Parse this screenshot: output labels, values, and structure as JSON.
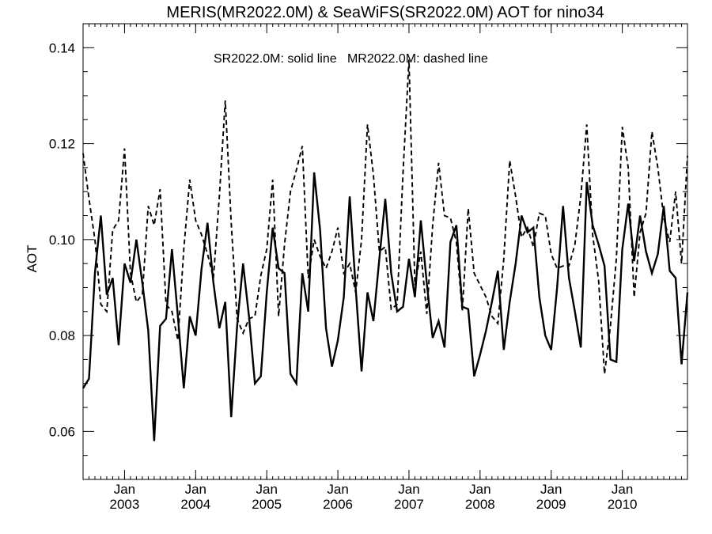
{
  "chart_data": {
    "type": "line",
    "title": "MERIS(MR2022.0M) & SeaWiFS(SR2022.0M)  AOT for nino34",
    "ylabel": "AOT",
    "xlabel": "",
    "annotation": "SR2022.0M: solid line   MR2022.0M: dashed line",
    "xlim": [
      "2002-06",
      "2010-12"
    ],
    "ylim": [
      0.05,
      0.145
    ],
    "y_ticks": [
      {
        "value": 0.06,
        "label": "0.06"
      },
      {
        "value": 0.08,
        "label": "0.08"
      },
      {
        "value": 0.1,
        "label": "0.10"
      },
      {
        "value": 0.12,
        "label": "0.12"
      },
      {
        "value": 0.14,
        "label": "0.14"
      }
    ],
    "x_ticks": [
      {
        "value": "2003-01",
        "month": "Jan",
        "year": "2003"
      },
      {
        "value": "2004-01",
        "month": "Jan",
        "year": "2004"
      },
      {
        "value": "2005-01",
        "month": "Jan",
        "year": "2005"
      },
      {
        "value": "2006-01",
        "month": "Jan",
        "year": "2006"
      },
      {
        "value": "2007-01",
        "month": "Jan",
        "year": "2007"
      },
      {
        "value": "2008-01",
        "month": "Jan",
        "year": "2008"
      },
      {
        "value": "2009-01",
        "month": "Jan",
        "year": "2009"
      },
      {
        "value": "2010-01",
        "month": "Jan",
        "year": "2010"
      }
    ],
    "grid": false,
    "series": [
      {
        "name": "SR2022.0M",
        "style": "solid",
        "color": "#000000",
        "points": [
          [
            "2002-06",
            0.069
          ],
          [
            "2002-07",
            0.071
          ],
          [
            "2002-08",
            0.093
          ],
          [
            "2002-09",
            0.105
          ],
          [
            "2002-10",
            0.0885
          ],
          [
            "2002-11",
            0.092
          ],
          [
            "2002-12",
            0.078
          ],
          [
            "2003-01",
            0.095
          ],
          [
            "2003-02",
            0.091
          ],
          [
            "2003-03",
            0.1
          ],
          [
            "2003-04",
            0.091
          ],
          [
            "2003-05",
            0.081
          ],
          [
            "2003-06",
            0.058
          ],
          [
            "2003-07",
            0.082
          ],
          [
            "2003-08",
            0.0835
          ],
          [
            "2003-09",
            0.098
          ],
          [
            "2003-10",
            0.084
          ],
          [
            "2003-11",
            0.069
          ],
          [
            "2003-12",
            0.084
          ],
          [
            "2004-01",
            0.08
          ],
          [
            "2004-02",
            0.094
          ],
          [
            "2004-03",
            0.1035
          ],
          [
            "2004-04",
            0.091
          ],
          [
            "2004-05",
            0.0815
          ],
          [
            "2004-06",
            0.087
          ],
          [
            "2004-07",
            0.063
          ],
          [
            "2004-08",
            0.082
          ],
          [
            "2004-09",
            0.095
          ],
          [
            "2004-10",
            0.084
          ],
          [
            "2004-11",
            0.07
          ],
          [
            "2004-12",
            0.0715
          ],
          [
            "2005-01",
            0.089
          ],
          [
            "2005-02",
            0.1025
          ],
          [
            "2005-03",
            0.094
          ],
          [
            "2005-04",
            0.093
          ],
          [
            "2005-05",
            0.072
          ],
          [
            "2005-06",
            0.07
          ],
          [
            "2005-07",
            0.093
          ],
          [
            "2005-08",
            0.085
          ],
          [
            "2005-09",
            0.114
          ],
          [
            "2005-10",
            0.102
          ],
          [
            "2005-11",
            0.0815
          ],
          [
            "2005-12",
            0.0735
          ],
          [
            "2006-01",
            0.079
          ],
          [
            "2006-02",
            0.088
          ],
          [
            "2006-03",
            0.109
          ],
          [
            "2006-04",
            0.09
          ],
          [
            "2006-05",
            0.0725
          ],
          [
            "2006-06",
            0.089
          ],
          [
            "2006-07",
            0.083
          ],
          [
            "2006-08",
            0.096
          ],
          [
            "2006-09",
            0.1085
          ],
          [
            "2006-10",
            0.093
          ],
          [
            "2006-11",
            0.085
          ],
          [
            "2006-12",
            0.086
          ],
          [
            "2007-01",
            0.096
          ],
          [
            "2007-02",
            0.088
          ],
          [
            "2007-03",
            0.104
          ],
          [
            "2007-04",
            0.091
          ],
          [
            "2007-05",
            0.0795
          ],
          [
            "2007-06",
            0.083
          ],
          [
            "2007-07",
            0.0775
          ],
          [
            "2007-08",
            0.0995
          ],
          [
            "2007-09",
            0.103
          ],
          [
            "2007-10",
            0.086
          ],
          [
            "2007-11",
            0.0855
          ],
          [
            "2007-12",
            0.0715
          ],
          [
            "2008-01",
            0.076
          ],
          [
            "2008-02",
            0.081
          ],
          [
            "2008-03",
            0.087
          ],
          [
            "2008-04",
            0.0935
          ],
          [
            "2008-05",
            0.077
          ],
          [
            "2008-06",
            0.087
          ],
          [
            "2008-07",
            0.095
          ],
          [
            "2008-08",
            0.105
          ],
          [
            "2008-09",
            0.1015
          ],
          [
            "2008-10",
            0.1025
          ],
          [
            "2008-11",
            0.088
          ],
          [
            "2008-12",
            0.08
          ],
          [
            "2009-01",
            0.077
          ],
          [
            "2009-02",
            0.09
          ],
          [
            "2009-03",
            0.107
          ],
          [
            "2009-04",
            0.092
          ],
          [
            "2009-05",
            0.085
          ],
          [
            "2009-06",
            0.0775
          ],
          [
            "2009-07",
            0.112
          ],
          [
            "2009-08",
            0.103
          ],
          [
            "2009-09",
            0.099
          ],
          [
            "2009-10",
            0.0945
          ],
          [
            "2009-11",
            0.075
          ],
          [
            "2009-12",
            0.0745
          ],
          [
            "2010-01",
            0.098
          ],
          [
            "2010-02",
            0.1075
          ],
          [
            "2010-03",
            0.0955
          ],
          [
            "2010-04",
            0.105
          ],
          [
            "2010-05",
            0.0975
          ],
          [
            "2010-06",
            0.093
          ],
          [
            "2010-07",
            0.097
          ],
          [
            "2010-08",
            0.107
          ],
          [
            "2010-09",
            0.0935
          ],
          [
            "2010-10",
            0.092
          ],
          [
            "2010-11",
            0.074
          ],
          [
            "2010-12",
            0.089
          ]
        ]
      },
      {
        "name": "MR2022.0M",
        "style": "dashed",
        "color": "#000000",
        "points": [
          [
            "2002-06",
            0.118
          ],
          [
            "2002-07",
            0.1085
          ],
          [
            "2002-08",
            0.1
          ],
          [
            "2002-09",
            0.0865
          ],
          [
            "2002-10",
            0.085
          ],
          [
            "2002-11",
            0.102
          ],
          [
            "2002-12",
            0.104
          ],
          [
            "2003-01",
            0.119
          ],
          [
            "2003-02",
            0.093
          ],
          [
            "2003-03",
            0.087
          ],
          [
            "2003-04",
            0.0885
          ],
          [
            "2003-05",
            0.107
          ],
          [
            "2003-06",
            0.103
          ],
          [
            "2003-07",
            0.1105
          ],
          [
            "2003-08",
            0.0865
          ],
          [
            "2003-09",
            0.085
          ],
          [
            "2003-10",
            0.079
          ],
          [
            "2003-11",
            0.098
          ],
          [
            "2003-12",
            0.1125
          ],
          [
            "2004-01",
            0.104
          ],
          [
            "2004-02",
            0.101
          ],
          [
            "2004-03",
            0.097
          ],
          [
            "2004-04",
            0.092
          ],
          [
            "2004-05",
            0.109
          ],
          [
            "2004-06",
            0.129
          ],
          [
            "2004-07",
            0.1035
          ],
          [
            "2004-08",
            0.0835
          ],
          [
            "2004-09",
            0.0805
          ],
          [
            "2004-10",
            0.0835
          ],
          [
            "2004-11",
            0.084
          ],
          [
            "2004-12",
            0.0925
          ],
          [
            "2005-01",
            0.098
          ],
          [
            "2005-02",
            0.1125
          ],
          [
            "2005-03",
            0.084
          ],
          [
            "2005-04",
            0.099
          ],
          [
            "2005-05",
            0.11
          ],
          [
            "2005-06",
            0.1145
          ],
          [
            "2005-07",
            0.1195
          ],
          [
            "2005-08",
            0.092
          ],
          [
            "2005-09",
            0.1
          ],
          [
            "2005-10",
            0.0965
          ],
          [
            "2005-11",
            0.094
          ],
          [
            "2005-12",
            0.0975
          ],
          [
            "2006-01",
            0.1025
          ],
          [
            "2006-02",
            0.093
          ],
          [
            "2006-03",
            0.095
          ],
          [
            "2006-04",
            0.089
          ],
          [
            "2006-05",
            0.1
          ],
          [
            "2006-06",
            0.124
          ],
          [
            "2006-07",
            0.1135
          ],
          [
            "2006-08",
            0.0975
          ],
          [
            "2006-09",
            0.0985
          ],
          [
            "2006-10",
            0.0855
          ],
          [
            "2006-11",
            0.0865
          ],
          [
            "2006-12",
            0.114
          ],
          [
            "2007-01",
            0.1375
          ],
          [
            "2007-02",
            0.0905
          ],
          [
            "2007-03",
            0.0975
          ],
          [
            "2007-04",
            0.0845
          ],
          [
            "2007-05",
            0.103
          ],
          [
            "2007-06",
            0.116
          ],
          [
            "2007-07",
            0.105
          ],
          [
            "2007-08",
            0.1045
          ],
          [
            "2007-09",
            0.0995
          ],
          [
            "2007-10",
            0.085
          ],
          [
            "2007-11",
            0.1065
          ],
          [
            "2007-12",
            0.093
          ],
          [
            "2008-01",
            0.0905
          ],
          [
            "2008-02",
            0.088
          ],
          [
            "2008-03",
            0.084
          ],
          [
            "2008-04",
            0.0825
          ],
          [
            "2008-05",
            0.096
          ],
          [
            "2008-06",
            0.1165
          ],
          [
            "2008-07",
            0.109
          ],
          [
            "2008-08",
            0.1005
          ],
          [
            "2008-09",
            0.1025
          ],
          [
            "2008-10",
            0.0985
          ],
          [
            "2008-11",
            0.1055
          ],
          [
            "2008-12",
            0.105
          ],
          [
            "2009-01",
            0.097
          ],
          [
            "2009-02",
            0.094
          ],
          [
            "2009-03",
            0.0945
          ],
          [
            "2009-04",
            0.0945
          ],
          [
            "2009-05",
            0.099
          ],
          [
            "2009-06",
            0.109
          ],
          [
            "2009-07",
            0.124
          ],
          [
            "2009-08",
            0.101
          ],
          [
            "2009-09",
            0.0915
          ],
          [
            "2009-10",
            0.072
          ],
          [
            "2009-11",
            0.082
          ],
          [
            "2009-12",
            0.096
          ],
          [
            "2010-01",
            0.1235
          ],
          [
            "2010-02",
            0.115
          ],
          [
            "2010-03",
            0.088
          ],
          [
            "2010-04",
            0.1015
          ],
          [
            "2010-05",
            0.1055
          ],
          [
            "2010-06",
            0.1225
          ],
          [
            "2010-07",
            0.115
          ],
          [
            "2010-08",
            0.1045
          ],
          [
            "2010-09",
            0.0995
          ],
          [
            "2010-10",
            0.11
          ],
          [
            "2010-11",
            0.095
          ],
          [
            "2010-12",
            0.1175
          ]
        ]
      }
    ]
  }
}
